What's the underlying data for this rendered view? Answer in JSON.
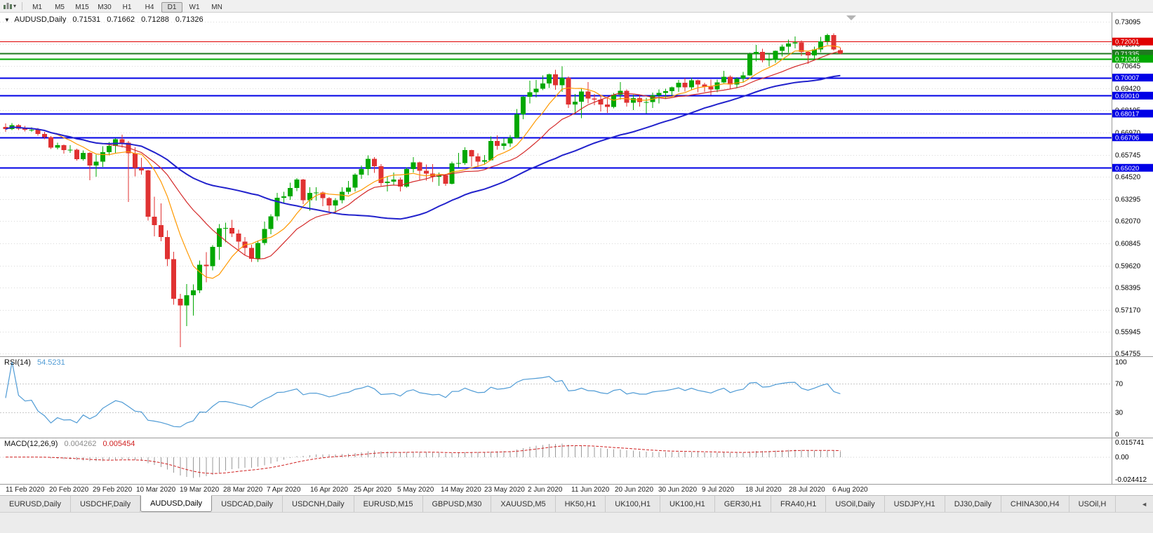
{
  "window": {
    "title": "AUDUSD,Daily"
  },
  "toolbar": {
    "chart_type_caret": "▾",
    "timeframes": [
      "M1",
      "M5",
      "M15",
      "M30",
      "H1",
      "H4",
      "D1",
      "W1",
      "MN"
    ],
    "active_timeframe": "D1"
  },
  "header": {
    "collapse_icon": "▼",
    "symbol_label": "AUDUSD,Daily"
  },
  "tabbar": {
    "scroll_left_label": "◄",
    "active_index": 2,
    "tabs": [
      "EURUSD,Daily",
      "USDCHF,Daily",
      "AUDUSD,Daily",
      "USDCAD,Daily",
      "USDCNH,Daily",
      "EURUSD,M15",
      "GBPUSD,M30",
      "XAUUSD,M5",
      "HK50,H1",
      "UK100,H1",
      "UK100,H1",
      "GER30,H1",
      "FRA40,H1",
      "USOil,Daily",
      "USDJPY,H1",
      "DJ30,Daily",
      "CHINA300,H4",
      "USOil,H"
    ]
  },
  "chart_data": {
    "type": "candlestick",
    "symbol": "AUDUSD",
    "timeframe": "Daily",
    "ohlc_header": {
      "open": "0.71531",
      "high": "0.71662",
      "low": "0.71288",
      "close": "0.71326"
    },
    "ylim": [
      0.54755,
      0.73095
    ],
    "price_ticks": [
      "0.73095",
      "0.71870",
      "0.70645",
      "0.69420",
      "0.68195",
      "0.66970",
      "0.65745",
      "0.64520",
      "0.63295",
      "0.62070",
      "0.60845",
      "0.59620",
      "0.58395",
      "0.57170",
      "0.55945",
      "0.54755"
    ],
    "levels": [
      {
        "price": 0.72001,
        "label": "0.72001",
        "color": "#e00000",
        "width": 1
      },
      {
        "price": 0.71335,
        "label": "0.71335",
        "color": "#1f7a1f",
        "width": 2
      },
      {
        "price": 0.71046,
        "label": "0.71046",
        "color": "#00a800",
        "width": 2
      },
      {
        "price": 0.70007,
        "label": "0.70007",
        "color": "#0000e6",
        "width": 2
      },
      {
        "price": 0.6901,
        "label": "0.69010",
        "color": "#0000e6",
        "width": 2
      },
      {
        "price": 0.68017,
        "label": "0.68017",
        "color": "#0000e6",
        "width": 2
      },
      {
        "price": 0.66706,
        "label": "0.66706",
        "color": "#0000e6",
        "width": 2
      },
      {
        "price": 0.6502,
        "label": "0.65020",
        "color": "#0000e6",
        "width": 2
      }
    ],
    "colors": {
      "up": "#00a800",
      "down": "#e03232",
      "grid": "#d9d9d9",
      "axis_border": "#9a9a9a"
    },
    "moving_averages": [
      {
        "period": 8,
        "color": "#ff9900",
        "width": 1.2
      },
      {
        "period": 16,
        "color": "#d42a2a",
        "width": 1.2
      },
      {
        "period": 40,
        "color": "#2222cc",
        "width": 2
      }
    ],
    "x_dates": [
      "11 Feb 2020",
      "20 Feb 2020",
      "29 Feb 2020",
      "10 Mar 2020",
      "19 Mar 2020",
      "28 Mar 2020",
      "7 Apr 2020",
      "16 Apr 2020",
      "25 Apr 2020",
      "5 May 2020",
      "14 May 2020",
      "23 May 2020",
      "2 Jun 2020",
      "11 Jun 2020",
      "20 Jun 2020",
      "30 Jun 2020",
      "9 Jul 2020",
      "18 Jul 2020",
      "28 Jul 2020",
      "6 Aug 2020"
    ],
    "candles": [
      [
        0.6728,
        0.6748,
        0.6701,
        0.6716
      ],
      [
        0.6716,
        0.675,
        0.671,
        0.6738
      ],
      [
        0.6738,
        0.6744,
        0.671,
        0.6719
      ],
      [
        0.6719,
        0.6733,
        0.6703,
        0.6712
      ],
      [
        0.6712,
        0.6726,
        0.67,
        0.6713
      ],
      [
        0.6713,
        0.6722,
        0.668,
        0.669
      ],
      [
        0.669,
        0.6701,
        0.6661,
        0.6672
      ],
      [
        0.6672,
        0.6678,
        0.6605,
        0.6613
      ],
      [
        0.6613,
        0.664,
        0.6603,
        0.6627
      ],
      [
        0.6627,
        0.663,
        0.658,
        0.66
      ],
      [
        0.66,
        0.6627,
        0.6585,
        0.6601
      ],
      [
        0.6601,
        0.6608,
        0.6542,
        0.6549
      ],
      [
        0.6549,
        0.6598,
        0.6541,
        0.6585
      ],
      [
        0.6585,
        0.6589,
        0.6434,
        0.6515
      ],
      [
        0.6515,
        0.6575,
        0.6452,
        0.6536
      ],
      [
        0.6536,
        0.6622,
        0.6506,
        0.6589
      ],
      [
        0.6589,
        0.6645,
        0.657,
        0.6624
      ],
      [
        0.6624,
        0.6665,
        0.6585,
        0.666
      ],
      [
        0.666,
        0.6686,
        0.6613,
        0.664
      ],
      [
        0.664,
        0.665,
        0.6313,
        0.6582
      ],
      [
        0.6582,
        0.6616,
        0.6454,
        0.6502
      ],
      [
        0.6502,
        0.6557,
        0.6464,
        0.6488
      ],
      [
        0.6488,
        0.6491,
        0.621,
        0.6232
      ],
      [
        0.6232,
        0.6343,
        0.6123,
        0.6185
      ],
      [
        0.6185,
        0.6305,
        0.6095,
        0.612
      ],
      [
        0.612,
        0.6156,
        0.5958,
        0.5997
      ],
      [
        0.5997,
        0.6038,
        0.5745,
        0.5777
      ],
      [
        0.5777,
        0.5805,
        0.551,
        0.5742
      ],
      [
        0.5742,
        0.586,
        0.5627,
        0.5797
      ],
      [
        0.5797,
        0.5857,
        0.5685,
        0.5825
      ],
      [
        0.5825,
        0.599,
        0.5809,
        0.5966
      ],
      [
        0.5966,
        0.6035,
        0.587,
        0.5958
      ],
      [
        0.5958,
        0.6075,
        0.5935,
        0.6065
      ],
      [
        0.6065,
        0.6191,
        0.5994,
        0.6167
      ],
      [
        0.6167,
        0.6199,
        0.609,
        0.617
      ],
      [
        0.617,
        0.6214,
        0.612,
        0.6139
      ],
      [
        0.6139,
        0.616,
        0.605,
        0.6093
      ],
      [
        0.6093,
        0.6119,
        0.6019,
        0.606
      ],
      [
        0.606,
        0.6076,
        0.5981,
        0.5999
      ],
      [
        0.5999,
        0.61,
        0.5982,
        0.6087
      ],
      [
        0.6087,
        0.6205,
        0.6075,
        0.6163
      ],
      [
        0.6163,
        0.6245,
        0.6135,
        0.6233
      ],
      [
        0.6233,
        0.6364,
        0.6211,
        0.6337
      ],
      [
        0.6337,
        0.6369,
        0.6303,
        0.6345
      ],
      [
        0.6345,
        0.642,
        0.6324,
        0.6391
      ],
      [
        0.6391,
        0.6445,
        0.6373,
        0.6437
      ],
      [
        0.6437,
        0.6441,
        0.6302,
        0.6323
      ],
      [
        0.6323,
        0.6394,
        0.6264,
        0.6363
      ],
      [
        0.6363,
        0.6395,
        0.632,
        0.6365
      ],
      [
        0.6365,
        0.6372,
        0.629,
        0.6335
      ],
      [
        0.6335,
        0.634,
        0.6253,
        0.6293
      ],
      [
        0.6293,
        0.6335,
        0.625,
        0.6323
      ],
      [
        0.6323,
        0.6395,
        0.6305,
        0.637
      ],
      [
        0.637,
        0.643,
        0.6355,
        0.6393
      ],
      [
        0.6393,
        0.6472,
        0.6371,
        0.6464
      ],
      [
        0.6464,
        0.6515,
        0.6441,
        0.6495
      ],
      [
        0.6495,
        0.657,
        0.646,
        0.6552
      ],
      [
        0.6552,
        0.6562,
        0.6473,
        0.6511
      ],
      [
        0.6511,
        0.6522,
        0.6402,
        0.6418
      ],
      [
        0.6418,
        0.6455,
        0.6372,
        0.6426
      ],
      [
        0.6426,
        0.6475,
        0.6405,
        0.6437
      ],
      [
        0.6437,
        0.6448,
        0.6371,
        0.6398
      ],
      [
        0.6398,
        0.6504,
        0.6392,
        0.6495
      ],
      [
        0.6495,
        0.6562,
        0.6475,
        0.6532
      ],
      [
        0.6532,
        0.6536,
        0.6432,
        0.6485
      ],
      [
        0.6485,
        0.652,
        0.6432,
        0.647
      ],
      [
        0.647,
        0.6522,
        0.6423,
        0.6452
      ],
      [
        0.6452,
        0.6475,
        0.6403,
        0.6461
      ],
      [
        0.6461,
        0.6469,
        0.6402,
        0.6414
      ],
      [
        0.6414,
        0.6536,
        0.641,
        0.6526
      ],
      [
        0.6526,
        0.6585,
        0.6505,
        0.6529
      ],
      [
        0.6529,
        0.6616,
        0.6519,
        0.6599
      ],
      [
        0.6599,
        0.6601,
        0.6509,
        0.6565
      ],
      [
        0.6565,
        0.6582,
        0.6506,
        0.6536
      ],
      [
        0.6536,
        0.6572,
        0.6519,
        0.6543
      ],
      [
        0.6543,
        0.6675,
        0.6542,
        0.665
      ],
      [
        0.665,
        0.6681,
        0.6602,
        0.6623
      ],
      [
        0.6623,
        0.6666,
        0.6601,
        0.6637
      ],
      [
        0.6637,
        0.6684,
        0.6618,
        0.6667
      ],
      [
        0.6667,
        0.6826,
        0.6664,
        0.6798
      ],
      [
        0.6798,
        0.6899,
        0.677,
        0.6894
      ],
      [
        0.6894,
        0.6983,
        0.6858,
        0.692
      ],
      [
        0.692,
        0.6988,
        0.689,
        0.694
      ],
      [
        0.694,
        0.7013,
        0.6932,
        0.6968
      ],
      [
        0.6968,
        0.7023,
        0.6944,
        0.7019
      ],
      [
        0.7019,
        0.7043,
        0.6934,
        0.6958
      ],
      [
        0.6958,
        0.7064,
        0.6922,
        0.7
      ],
      [
        0.7,
        0.7008,
        0.6832,
        0.6852
      ],
      [
        0.6852,
        0.691,
        0.68,
        0.6867
      ],
      [
        0.6867,
        0.6944,
        0.6776,
        0.6924
      ],
      [
        0.6924,
        0.6976,
        0.6857,
        0.6884
      ],
      [
        0.6884,
        0.6911,
        0.6848,
        0.688
      ],
      [
        0.688,
        0.6907,
        0.6813,
        0.6852
      ],
      [
        0.6852,
        0.6886,
        0.6805,
        0.6838
      ],
      [
        0.6838,
        0.6915,
        0.6831,
        0.6906
      ],
      [
        0.6906,
        0.6977,
        0.688,
        0.6927
      ],
      [
        0.6927,
        0.6936,
        0.6841,
        0.6861
      ],
      [
        0.6861,
        0.6906,
        0.682,
        0.6886
      ],
      [
        0.6886,
        0.6902,
        0.6841,
        0.6865
      ],
      [
        0.6865,
        0.6889,
        0.6803,
        0.6866
      ],
      [
        0.6866,
        0.6918,
        0.6833,
        0.6903
      ],
      [
        0.6903,
        0.6935,
        0.6857,
        0.6916
      ],
      [
        0.6916,
        0.694,
        0.6883,
        0.6925
      ],
      [
        0.6925,
        0.6951,
        0.6902,
        0.6946
      ],
      [
        0.6946,
        0.6988,
        0.6921,
        0.6973
      ],
      [
        0.6973,
        0.6998,
        0.6923,
        0.6946
      ],
      [
        0.6946,
        0.7,
        0.6932,
        0.6985
      ],
      [
        0.6985,
        0.699,
        0.692,
        0.6962
      ],
      [
        0.6962,
        0.6973,
        0.6921,
        0.695
      ],
      [
        0.695,
        0.6989,
        0.6904,
        0.6936
      ],
      [
        0.6936,
        0.699,
        0.692,
        0.6975
      ],
      [
        0.6975,
        0.7039,
        0.6971,
        0.7006
      ],
      [
        0.7006,
        0.7013,
        0.694,
        0.6963
      ],
      [
        0.6963,
        0.7003,
        0.6942,
        0.6995
      ],
      [
        0.6995,
        0.7032,
        0.6975,
        0.7013
      ],
      [
        0.7013,
        0.7138,
        0.7011,
        0.7131
      ],
      [
        0.7131,
        0.7182,
        0.709,
        0.7142
      ],
      [
        0.7142,
        0.716,
        0.7085,
        0.7097
      ],
      [
        0.7097,
        0.713,
        0.7063,
        0.7105
      ],
      [
        0.7105,
        0.715,
        0.7082,
        0.7148
      ],
      [
        0.7148,
        0.7184,
        0.7118,
        0.7172
      ],
      [
        0.7172,
        0.721,
        0.7139,
        0.719
      ],
      [
        0.719,
        0.7228,
        0.7162,
        0.7195
      ],
      [
        0.7195,
        0.7207,
        0.712,
        0.7143
      ],
      [
        0.7143,
        0.7149,
        0.7077,
        0.7124
      ],
      [
        0.7124,
        0.7172,
        0.7104,
        0.7157
      ],
      [
        0.7157,
        0.7226,
        0.714,
        0.72
      ],
      [
        0.72,
        0.7243,
        0.7182,
        0.7235
      ],
      [
        0.7235,
        0.7245,
        0.715,
        0.7157
      ],
      [
        0.7153,
        0.7166,
        0.7129,
        0.7133
      ]
    ],
    "rsi": {
      "label": "RSI(14)",
      "value": "54.5231",
      "period": 14,
      "color": "#4f9bd5",
      "ticks": [
        "100",
        "70",
        "30",
        "0"
      ],
      "guide_levels": [
        70,
        30
      ]
    },
    "macd": {
      "label": "MACD(12,26,9)",
      "value_main": "0.004262",
      "value_signal": "0.005454",
      "fast": 12,
      "slow": 26,
      "signal": 9,
      "ticks": [
        "0.015741",
        "0.00",
        "-0.024412"
      ],
      "range": [
        -0.024412,
        0.015741
      ],
      "hist_color": "#9a9a9a",
      "signal_color": "#d02020"
    }
  }
}
